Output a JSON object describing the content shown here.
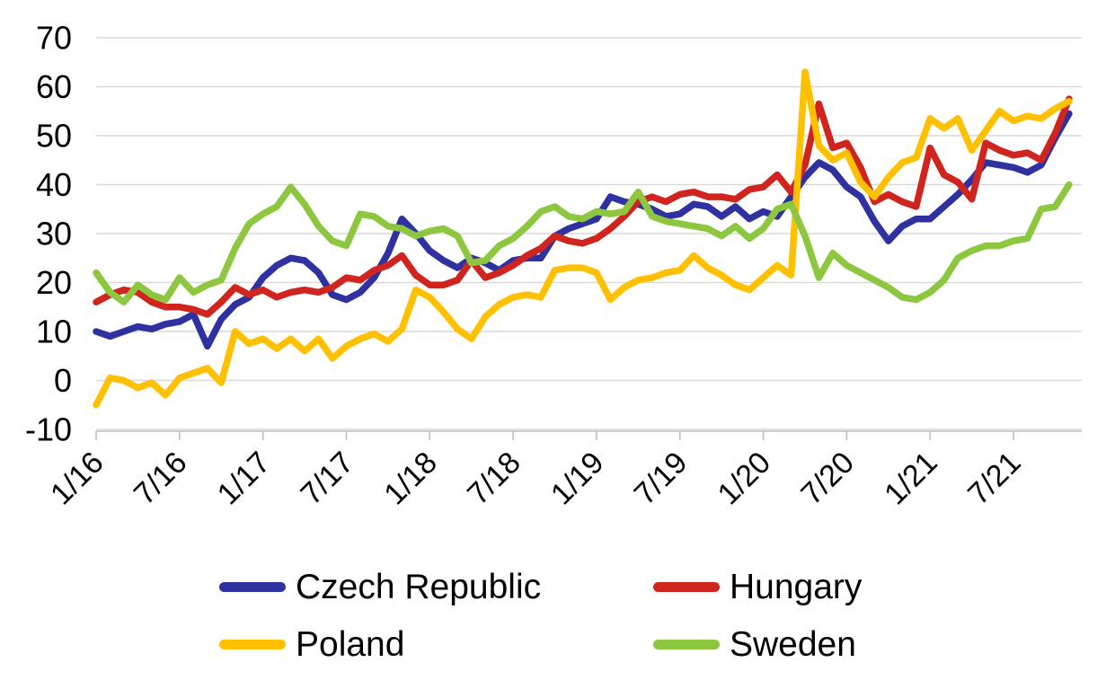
{
  "chart_data": {
    "type": "line",
    "title": "",
    "xlabel": "",
    "ylabel": "",
    "x_frequency": "monthly",
    "x_range_shown": [
      "1/16",
      "11/21"
    ],
    "x_tick_labels": [
      "1/16",
      "7/16",
      "1/17",
      "7/17",
      "1/18",
      "7/18",
      "1/19",
      "7/19",
      "1/20",
      "7/20",
      "1/21",
      "7/21"
    ],
    "x_tick_month_indices": [
      0,
      6,
      12,
      18,
      24,
      30,
      36,
      42,
      48,
      54,
      60,
      66
    ],
    "y_ticks": [
      70,
      60,
      50,
      40,
      30,
      20,
      10,
      0,
      -10
    ],
    "ylim": [
      -10,
      70
    ],
    "grid": "horizontal-only",
    "grid_color": "#D9D9D9",
    "axis_color": "#BFBFBF",
    "legend_position": "bottom-two-columns",
    "series": [
      {
        "name": "Czech Republic",
        "color": "#2F31A0",
        "values": [
          10,
          9,
          10,
          11,
          10.5,
          11.5,
          12,
          13.5,
          7,
          12.5,
          15.5,
          17,
          21,
          23.5,
          25,
          24.5,
          22,
          17.5,
          16.5,
          18,
          21,
          26,
          33,
          30,
          26.5,
          24.5,
          23,
          25,
          24,
          22.5,
          24.5,
          25,
          25,
          29.5,
          31,
          32,
          33,
          37.5,
          36.5,
          36,
          35,
          33.5,
          34,
          36,
          35.5,
          33.5,
          35.5,
          33,
          34.5,
          33.5,
          37.5,
          41.5,
          44.5,
          43,
          39.5,
          37.5,
          32.5,
          28.5,
          31.5,
          33,
          33,
          35.5,
          38,
          41,
          44.5,
          44,
          43.5,
          42.5,
          44,
          49.5,
          54.5
        ]
      },
      {
        "name": "Hungary",
        "color": "#D0241E",
        "values": [
          16,
          17.5,
          18.5,
          18,
          16,
          15,
          15,
          14.5,
          13.5,
          16,
          19,
          17.5,
          18.5,
          17,
          18,
          18.5,
          18,
          19,
          21,
          20.5,
          22.5,
          23.5,
          25.5,
          21.5,
          19.5,
          19.5,
          20.5,
          24.5,
          21,
          22,
          23.5,
          25.5,
          27,
          29.5,
          28.5,
          28,
          29,
          31,
          33.5,
          36.5,
          37.5,
          36.5,
          38,
          38.5,
          37.5,
          37.5,
          37,
          39,
          39.5,
          42,
          38.5,
          44,
          56.5,
          47.5,
          48.5,
          43.5,
          36.5,
          38,
          36.5,
          35.5,
          47.5,
          42,
          40.5,
          37,
          48.5,
          47,
          46,
          46.5,
          45,
          50.5,
          57.5
        ]
      },
      {
        "name": "Poland",
        "color": "#FFC000",
        "values": [
          -5,
          0.5,
          0,
          -1.5,
          -0.5,
          -3,
          0.5,
          1.5,
          2.5,
          -0.5,
          10,
          7.5,
          8.5,
          6.5,
          8.5,
          6,
          8.5,
          4.5,
          7,
          8.5,
          9.5,
          8,
          10.5,
          18.5,
          17,
          14,
          10.5,
          8.5,
          13,
          15.5,
          17,
          17.5,
          17,
          22.5,
          23,
          23,
          22,
          16.5,
          19,
          20.5,
          21,
          22,
          22.5,
          25.5,
          23,
          21.5,
          19.5,
          18.5,
          21,
          23.5,
          21.5,
          63,
          48,
          45,
          46.5,
          40.5,
          37.5,
          41.5,
          44.5,
          45.5,
          53.5,
          51.5,
          53.5,
          47,
          51,
          55,
          53,
          54,
          53.5,
          55.5,
          57
        ]
      },
      {
        "name": "Sweden",
        "color": "#8DC63F",
        "values": [
          22,
          18,
          16,
          19.5,
          17.5,
          16.5,
          21,
          18,
          19.5,
          20.5,
          27,
          32,
          34,
          35.5,
          39.5,
          36,
          31.5,
          28.5,
          27.5,
          34,
          33.5,
          31.5,
          31,
          29.5,
          30.5,
          31,
          29.5,
          24,
          24.5,
          27.5,
          29,
          31.5,
          34.5,
          35.5,
          33.5,
          33,
          34.5,
          34,
          34.5,
          38.5,
          33.5,
          32.5,
          32,
          31.5,
          31,
          29.5,
          31.5,
          29,
          31,
          35,
          36,
          29.5,
          21,
          26,
          23.5,
          22,
          20.5,
          19,
          17,
          16.5,
          18,
          20.5,
          25,
          26.5,
          27.5,
          27.5,
          28.5,
          29,
          35,
          35.5,
          40
        ]
      }
    ]
  }
}
